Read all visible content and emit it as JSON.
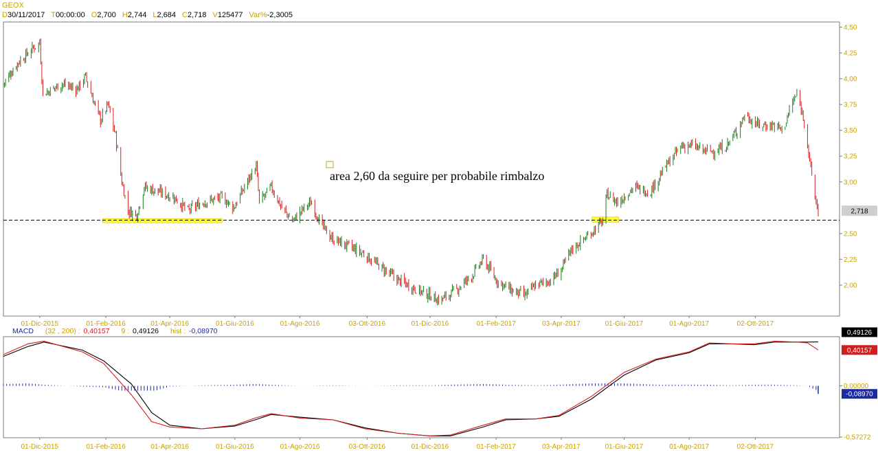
{
  "header": {
    "symbol": "GEOX",
    "fields": [
      {
        "label": "D",
        "value": "30/11/2017"
      },
      {
        "label": "T",
        "value": "00:00:00"
      },
      {
        "label": "O",
        "value": "2,700"
      },
      {
        "label": "H",
        "value": "2,744"
      },
      {
        "label": "L",
        "value": "2,684"
      },
      {
        "label": "C",
        "value": "2,718"
      },
      {
        "label": "V",
        "value": "125477"
      },
      {
        "label": "Var%",
        "value": "-2,3005"
      }
    ]
  },
  "macd_header": {
    "name": "MACD",
    "params": "(32 , 200) :",
    "macd_value": "0,40157",
    "signal_label": "9 :",
    "signal_value": "0,49126",
    "hist_label": "hist :",
    "hist_value": "-0,08970"
  },
  "annotation": "area 2,60 da seguire per probabile rimbalzo",
  "price_label": "2,718",
  "colors": {
    "up": "#1a7a1a",
    "down": "#d41c1c",
    "axis_text": "#c8a000",
    "macd_line": "#d41c1c",
    "signal_line": "#000000",
    "histogram": "#1c2aa0",
    "highlight": "#ffff33",
    "frame": "#7a7a7a"
  },
  "chart_data": [
    {
      "type": "candlestick",
      "title": "GEOX",
      "x_tick_labels": [
        "01-Dic-2015",
        "01-Feb-2016",
        "01-Apr-2016",
        "01-Giu-2016",
        "01-Ago-2016",
        "03-Ott-2016",
        "01-Dic-2016",
        "01-Feb-2017",
        "03-Apr-2017",
        "01-Giu-2017",
        "01-Ago-2017",
        "02-Ott-2017"
      ],
      "y_tick_labels": [
        "4,50",
        "4,25",
        "4,00",
        "3,75",
        "3,50",
        "3,25",
        "3,00",
        "2,50",
        "2,25",
        "2,00"
      ],
      "y_ticks": [
        4.5,
        4.25,
        4.0,
        3.75,
        3.5,
        3.25,
        3.0,
        2.5,
        2.25,
        2.0
      ],
      "ylim": [
        1.7,
        4.55
      ],
      "x_range": [
        "2015-10-28",
        "2017-12-20"
      ],
      "last_close": 2.718,
      "support_line": 2.63,
      "highlight_zones": [
        {
          "from": "2016-01-29",
          "to": "2016-05-20",
          "low": 2.605,
          "high": 2.645
        },
        {
          "from": "2017-05-02",
          "to": "2017-05-27",
          "low": 2.61,
          "high": 2.66
        }
      ],
      "price_path": [
        {
          "date": "2015-10-28",
          "close": 3.95
        },
        {
          "date": "2015-11-10",
          "close": 4.15
        },
        {
          "date": "2015-11-25",
          "close": 4.3
        },
        {
          "date": "2015-12-01",
          "close": 4.35
        },
        {
          "date": "2015-12-04",
          "close": 3.85
        },
        {
          "date": "2015-12-22",
          "close": 3.95
        },
        {
          "date": "2016-01-05",
          "close": 3.9
        },
        {
          "date": "2016-01-13",
          "close": 4.02
        },
        {
          "date": "2016-01-20",
          "close": 3.8
        },
        {
          "date": "2016-01-27",
          "close": 3.6
        },
        {
          "date": "2016-02-03",
          "close": 3.75
        },
        {
          "date": "2016-02-10",
          "close": 3.45
        },
        {
          "date": "2016-02-16",
          "close": 3.0
        },
        {
          "date": "2016-02-22",
          "close": 2.72
        },
        {
          "date": "2016-03-01",
          "close": 2.68
        },
        {
          "date": "2016-03-08",
          "close": 2.95
        },
        {
          "date": "2016-03-23",
          "close": 2.9
        },
        {
          "date": "2016-04-05",
          "close": 2.85
        },
        {
          "date": "2016-04-18",
          "close": 2.72
        },
        {
          "date": "2016-05-01",
          "close": 2.8
        },
        {
          "date": "2016-05-20",
          "close": 2.85
        },
        {
          "date": "2016-05-31",
          "close": 2.75
        },
        {
          "date": "2016-06-15",
          "close": 3.05
        },
        {
          "date": "2016-06-21",
          "close": 3.15
        },
        {
          "date": "2016-06-24",
          "close": 2.8
        },
        {
          "date": "2016-07-05",
          "close": 2.95
        },
        {
          "date": "2016-07-15",
          "close": 2.75
        },
        {
          "date": "2016-07-25",
          "close": 2.62
        },
        {
          "date": "2016-08-05",
          "close": 2.75
        },
        {
          "date": "2016-08-12",
          "close": 2.8
        },
        {
          "date": "2016-08-20",
          "close": 2.6
        },
        {
          "date": "2016-08-31",
          "close": 2.45
        },
        {
          "date": "2016-09-15",
          "close": 2.38
        },
        {
          "date": "2016-09-30",
          "close": 2.3
        },
        {
          "date": "2016-10-15",
          "close": 2.18
        },
        {
          "date": "2016-11-01",
          "close": 2.05
        },
        {
          "date": "2016-11-20",
          "close": 1.95
        },
        {
          "date": "2016-12-01",
          "close": 1.9
        },
        {
          "date": "2016-12-10",
          "close": 1.85
        },
        {
          "date": "2016-12-25",
          "close": 1.95
        },
        {
          "date": "2017-01-10",
          "close": 2.1
        },
        {
          "date": "2017-01-20",
          "close": 2.25
        },
        {
          "date": "2017-02-01",
          "close": 2.05
        },
        {
          "date": "2017-02-15",
          "close": 1.95
        },
        {
          "date": "2017-02-28",
          "close": 1.9
        },
        {
          "date": "2017-03-10",
          "close": 2.0
        },
        {
          "date": "2017-03-25",
          "close": 2.05
        },
        {
          "date": "2017-04-03",
          "close": 2.15
        },
        {
          "date": "2017-04-13",
          "close": 2.35
        },
        {
          "date": "2017-04-25",
          "close": 2.45
        },
        {
          "date": "2017-05-05",
          "close": 2.55
        },
        {
          "date": "2017-05-12",
          "close": 2.62
        },
        {
          "date": "2017-05-16",
          "close": 2.88
        },
        {
          "date": "2017-05-26",
          "close": 2.8
        },
        {
          "date": "2017-06-10",
          "close": 2.95
        },
        {
          "date": "2017-06-25",
          "close": 2.9
        },
        {
          "date": "2017-07-10",
          "close": 3.15
        },
        {
          "date": "2017-07-25",
          "close": 3.35
        },
        {
          "date": "2017-08-05",
          "close": 3.35
        },
        {
          "date": "2017-08-15",
          "close": 3.3
        },
        {
          "date": "2017-08-25",
          "close": 3.3
        },
        {
          "date": "2017-09-05",
          "close": 3.35
        },
        {
          "date": "2017-09-15",
          "close": 3.5
        },
        {
          "date": "2017-09-22",
          "close": 3.65
        },
        {
          "date": "2017-10-05",
          "close": 3.55
        },
        {
          "date": "2017-10-20",
          "close": 3.55
        },
        {
          "date": "2017-10-28",
          "close": 3.5
        },
        {
          "date": "2017-11-05",
          "close": 3.75
        },
        {
          "date": "2017-11-10",
          "close": 3.85
        },
        {
          "date": "2017-11-17",
          "close": 3.6
        },
        {
          "date": "2017-11-22",
          "close": 3.2
        },
        {
          "date": "2017-11-27",
          "close": 2.85
        },
        {
          "date": "2017-11-30",
          "close": 2.718
        }
      ]
    },
    {
      "type": "line",
      "title": "MACD",
      "y_tick_labels": [
        "0,00000",
        "-0,57272"
      ],
      "y_ticks": [
        0.0,
        -0.57272
      ],
      "ylim": [
        -0.58,
        0.55
      ],
      "series": [
        {
          "name": "MACD",
          "points": [
            {
              "date": "2015-10-28",
              "value": 0.35
            },
            {
              "date": "2015-11-20",
              "value": 0.47
            },
            {
              "date": "2015-12-05",
              "value": 0.5
            },
            {
              "date": "2016-01-10",
              "value": 0.38
            },
            {
              "date": "2016-01-30",
              "value": 0.25
            },
            {
              "date": "2016-02-25",
              "value": -0.1
            },
            {
              "date": "2016-03-15",
              "value": -0.4
            },
            {
              "date": "2016-04-01",
              "value": -0.46
            },
            {
              "date": "2016-05-01",
              "value": -0.48
            },
            {
              "date": "2016-06-01",
              "value": -0.44
            },
            {
              "date": "2016-06-20",
              "value": -0.36
            },
            {
              "date": "2016-07-05",
              "value": -0.31
            },
            {
              "date": "2016-08-01",
              "value": -0.36
            },
            {
              "date": "2016-09-01",
              "value": -0.38
            },
            {
              "date": "2016-10-01",
              "value": -0.48
            },
            {
              "date": "2016-11-01",
              "value": -0.53
            },
            {
              "date": "2016-12-01",
              "value": -0.56
            },
            {
              "date": "2016-12-20",
              "value": -0.55
            },
            {
              "date": "2017-01-20",
              "value": -0.44
            },
            {
              "date": "2017-02-10",
              "value": -0.37
            },
            {
              "date": "2017-03-10",
              "value": -0.37
            },
            {
              "date": "2017-04-01",
              "value": -0.33
            },
            {
              "date": "2017-05-01",
              "value": -0.12
            },
            {
              "date": "2017-06-01",
              "value": 0.15
            },
            {
              "date": "2017-07-01",
              "value": 0.3
            },
            {
              "date": "2017-08-01",
              "value": 0.38
            },
            {
              "date": "2017-08-20",
              "value": 0.48
            },
            {
              "date": "2017-09-10",
              "value": 0.47
            },
            {
              "date": "2017-10-01",
              "value": 0.47
            },
            {
              "date": "2017-10-20",
              "value": 0.5
            },
            {
              "date": "2017-11-10",
              "value": 0.49
            },
            {
              "date": "2017-11-20",
              "value": 0.48
            },
            {
              "date": "2017-11-30",
              "value": 0.40157
            }
          ]
        },
        {
          "name": "9",
          "points": [
            {
              "date": "2015-10-28",
              "value": 0.33
            },
            {
              "date": "2015-11-20",
              "value": 0.44
            },
            {
              "date": "2015-12-05",
              "value": 0.49
            },
            {
              "date": "2016-01-10",
              "value": 0.4
            },
            {
              "date": "2016-01-30",
              "value": 0.28
            },
            {
              "date": "2016-02-25",
              "value": 0.02
            },
            {
              "date": "2016-03-15",
              "value": -0.3
            },
            {
              "date": "2016-04-01",
              "value": -0.44
            },
            {
              "date": "2016-05-01",
              "value": -0.48
            },
            {
              "date": "2016-06-01",
              "value": -0.45
            },
            {
              "date": "2016-06-20",
              "value": -0.38
            },
            {
              "date": "2016-07-05",
              "value": -0.32
            },
            {
              "date": "2016-08-01",
              "value": -0.35
            },
            {
              "date": "2016-09-01",
              "value": -0.38
            },
            {
              "date": "2016-10-01",
              "value": -0.47
            },
            {
              "date": "2016-11-01",
              "value": -0.53
            },
            {
              "date": "2016-12-01",
              "value": -0.56
            },
            {
              "date": "2016-12-20",
              "value": -0.56
            },
            {
              "date": "2017-01-20",
              "value": -0.46
            },
            {
              "date": "2017-02-10",
              "value": -0.38
            },
            {
              "date": "2017-03-10",
              "value": -0.37
            },
            {
              "date": "2017-04-01",
              "value": -0.34
            },
            {
              "date": "2017-05-01",
              "value": -0.15
            },
            {
              "date": "2017-06-01",
              "value": 0.12
            },
            {
              "date": "2017-07-01",
              "value": 0.29
            },
            {
              "date": "2017-08-01",
              "value": 0.37
            },
            {
              "date": "2017-08-20",
              "value": 0.47
            },
            {
              "date": "2017-09-10",
              "value": 0.47
            },
            {
              "date": "2017-10-01",
              "value": 0.46
            },
            {
              "date": "2017-10-20",
              "value": 0.49
            },
            {
              "date": "2017-11-10",
              "value": 0.49
            },
            {
              "date": "2017-11-20",
              "value": 0.49
            },
            {
              "date": "2017-11-30",
              "value": 0.49126
            }
          ]
        }
      ],
      "histogram": {
        "name": "hist",
        "last_value": -0.0897
      }
    }
  ]
}
